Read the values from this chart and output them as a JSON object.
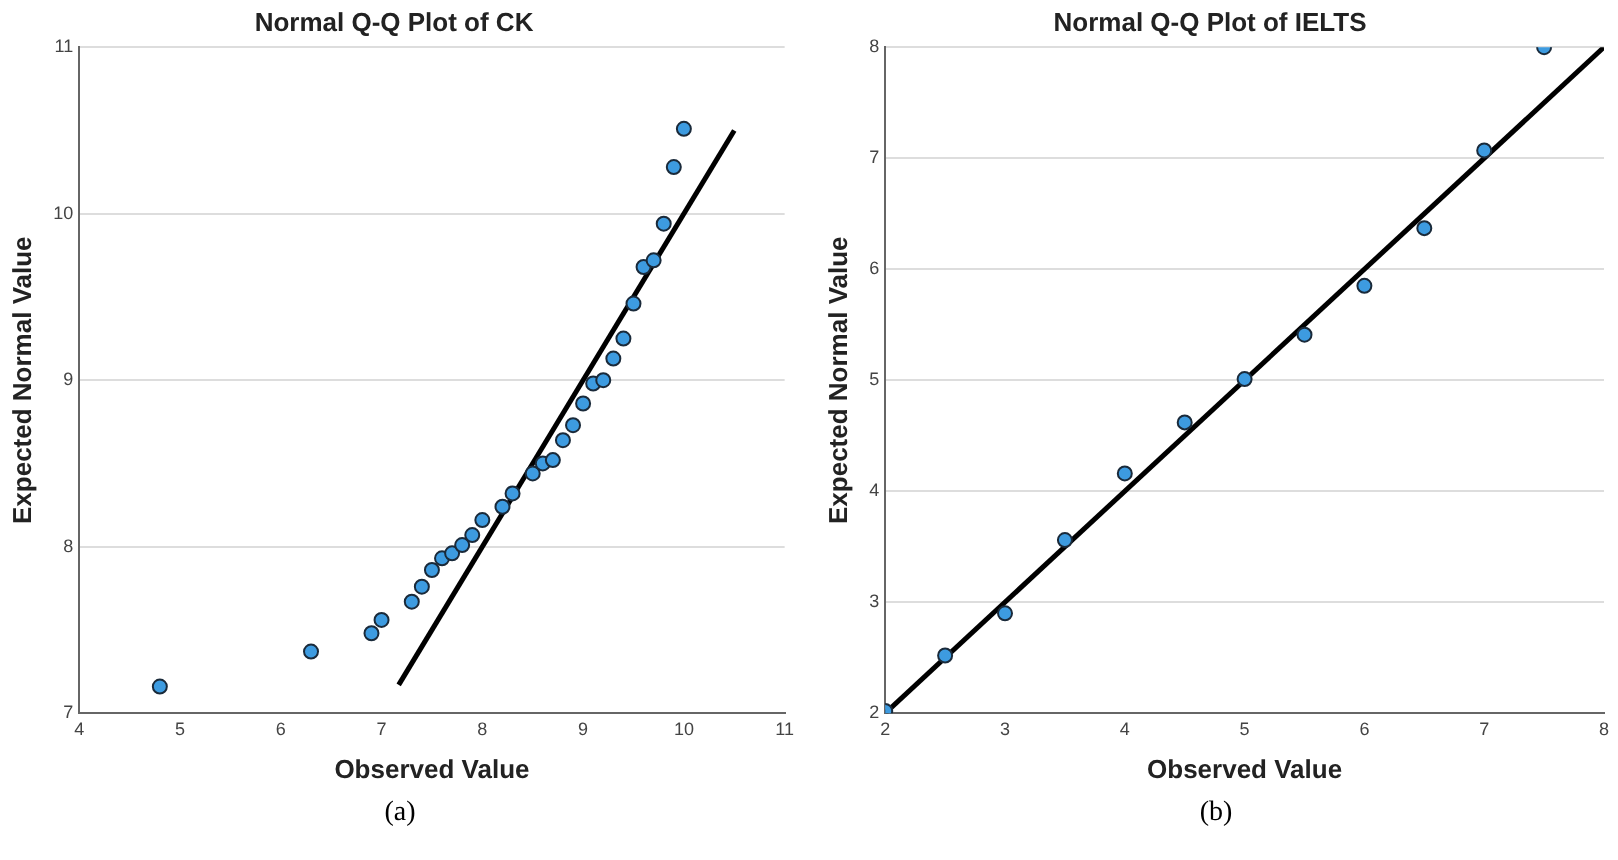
{
  "chart_data": [
    {
      "type": "scatter",
      "title": "Normal Q-Q Plot of CK",
      "xlabel": "Observed Value",
      "ylabel": "Expected Normal Value",
      "annotations": [
        "(a)"
      ],
      "xlim": [
        4,
        11
      ],
      "ylim": [
        7,
        11
      ],
      "xticks": [
        4,
        5,
        6,
        7,
        8,
        9,
        10,
        11
      ],
      "yticks": [
        7,
        8,
        9,
        10,
        11
      ],
      "grid": "y",
      "legend": false,
      "series": [
        {
          "color": "#3d9be0",
          "marker": "circle",
          "x": [
            4.8,
            6.3,
            6.9,
            7.0,
            7.3,
            7.4,
            7.5,
            7.6,
            7.7,
            7.8,
            7.9,
            8.0,
            8.2,
            8.3,
            8.5,
            8.6,
            8.7,
            8.8,
            8.9,
            9.0,
            9.1,
            9.2,
            9.3,
            9.4,
            9.5,
            9.6,
            9.7,
            9.8,
            9.9,
            10.0
          ],
          "values": [
            7.16,
            7.37,
            7.48,
            7.56,
            7.67,
            7.76,
            7.86,
            7.93,
            7.96,
            8.01,
            8.07,
            8.16,
            8.24,
            8.32,
            8.44,
            8.5,
            8.52,
            8.64,
            8.73,
            8.86,
            8.98,
            9.0,
            9.13,
            9.25,
            9.46,
            9.68,
            9.72,
            9.94,
            10.28,
            10.51
          ]
        },
        {
          "type": "line",
          "color": "#000000",
          "marker": "none",
          "x": [
            7.17,
            10.5
          ],
          "values": [
            7.17,
            10.5
          ]
        }
      ]
    },
    {
      "type": "scatter",
      "title": "Normal Q-Q Plot of IELTS",
      "xlabel": "Observed Value",
      "ylabel": "Expected Normal Value",
      "annotations": [
        "(b)"
      ],
      "xlim": [
        2,
        8
      ],
      "ylim": [
        2,
        8
      ],
      "xticks": [
        2,
        3,
        4,
        5,
        6,
        7,
        8
      ],
      "yticks": [
        2,
        3,
        4,
        5,
        6,
        7,
        8
      ],
      "grid": "y",
      "legend": false,
      "series": [
        {
          "color": "#3d9be0",
          "marker": "circle",
          "x": [
            2,
            2.5,
            3,
            3.5,
            4,
            4.5,
            5,
            5.5,
            6,
            6.5,
            7,
            7.5
          ],
          "values": [
            2.02,
            2.52,
            2.9,
            3.56,
            4.16,
            4.62,
            5.01,
            5.41,
            5.85,
            6.37,
            7.07,
            8.0
          ]
        },
        {
          "type": "line",
          "color": "#000000",
          "marker": "none",
          "x": [
            2,
            8
          ],
          "values": [
            2,
            8
          ]
        }
      ]
    }
  ]
}
